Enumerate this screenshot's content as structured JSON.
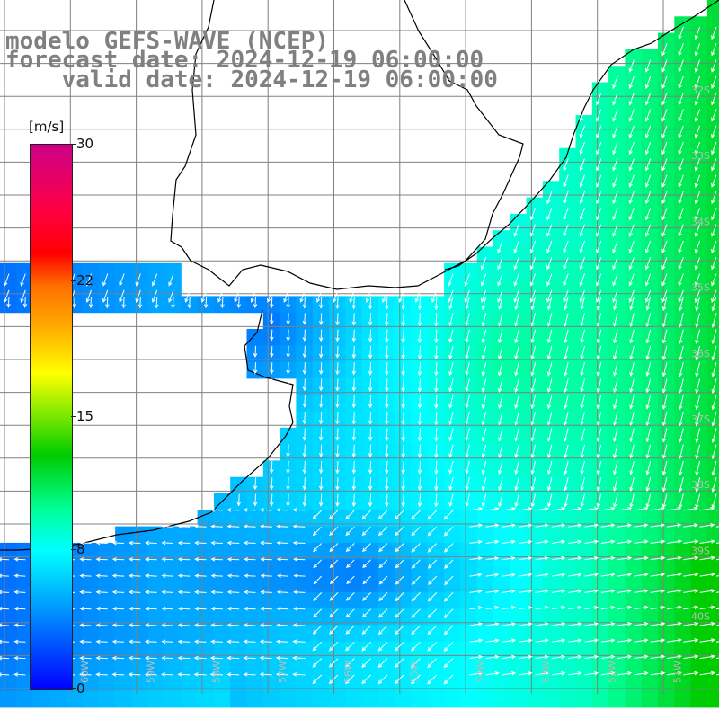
{
  "title": {
    "line1": "modelo GEFS-WAVE (NCEP)",
    "line2": "forecast date: 2024-12-19 06:00:00",
    "line3": "valid date: 2024-12-19 06:00:00"
  },
  "colorbar": {
    "unit": "[m/s]",
    "ticks": [
      "30",
      "22",
      "15",
      "8",
      "0"
    ],
    "tick_values": [
      30,
      22,
      15,
      8,
      0
    ],
    "colors": [
      "#0000ff",
      "#00ccff",
      "#00ffff",
      "#00cc00",
      "#ffff00",
      "#ff7000",
      "#ff0000",
      "#cc0088"
    ]
  },
  "map": {
    "land_color": "#ffffff",
    "grid_color": "#808080",
    "coast_color": "#000000",
    "arrow_color": "#ffffff",
    "lat_labels": [
      "32S",
      "33S",
      "34S",
      "35S",
      "36S",
      "37S",
      "38S",
      "39S",
      "40S"
    ],
    "lon_labels": [
      "60W",
      "59W",
      "58W",
      "57W",
      "56W",
      "55W",
      "54W",
      "53W",
      "52W",
      "51W"
    ]
  }
}
